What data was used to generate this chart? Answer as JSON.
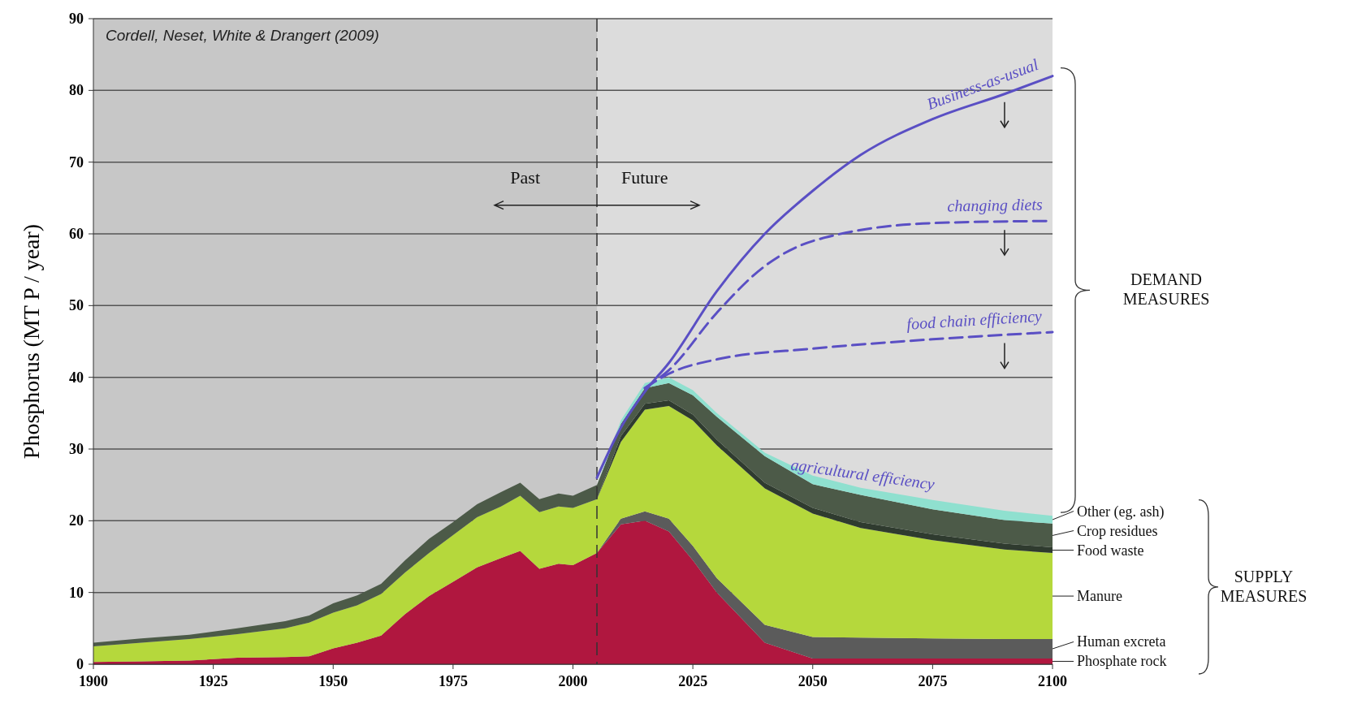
{
  "chart_data": {
    "type": "area",
    "stacked": true,
    "ylabel": "Phosphorus (MT P / year)",
    "x": [
      1900,
      1910,
      1920,
      1930,
      1940,
      1945,
      1950,
      1955,
      1960,
      1965,
      1970,
      1975,
      1980,
      1985,
      1989,
      1993,
      1997,
      2000,
      2005,
      2010,
      2015,
      2020,
      2025,
      2030,
      2040,
      2050,
      2060,
      2075,
      2090,
      2100
    ],
    "xlim": [
      1900,
      2100
    ],
    "xticks": [
      1900,
      1925,
      1950,
      1975,
      2000,
      2025,
      2050,
      2075,
      2100
    ],
    "ylim": [
      0,
      90
    ],
    "yticks": [
      0,
      10,
      20,
      30,
      40,
      50,
      60,
      70,
      80,
      90
    ],
    "grid": "y",
    "series": [
      {
        "name": "Phosphate rock",
        "color": "#b0173f",
        "values": [
          0.3,
          0.4,
          0.5,
          0.9,
          1.0,
          1.1,
          2.2,
          3.0,
          4.0,
          7.0,
          9.5,
          11.5,
          13.5,
          14.8,
          15.8,
          13.3,
          14.0,
          13.8,
          15.5,
          19.5,
          20,
          18.5,
          14.5,
          10,
          3,
          0.8,
          0.8,
          0.8,
          0.8,
          0.8
        ]
      },
      {
        "name": "Human excreta",
        "color": "#5b5b5b",
        "values": [
          0,
          0,
          0,
          0,
          0,
          0,
          0,
          0,
          0,
          0,
          0,
          0,
          0,
          0,
          0,
          0,
          0,
          0,
          0,
          0.8,
          1.3,
          1.8,
          2.0,
          2.0,
          2.5,
          3.0,
          2.9,
          2.8,
          2.7,
          2.7
        ]
      },
      {
        "name": "Manure",
        "color": "#b5d83c",
        "values": [
          2.2,
          2.6,
          3.0,
          3.3,
          4.0,
          4.7,
          5.0,
          5.2,
          5.8,
          5.8,
          6.0,
          6.5,
          7.0,
          7.2,
          7.7,
          7.9,
          8.0,
          8.0,
          7.5,
          10.7,
          14.2,
          15.7,
          17.5,
          18.5,
          19.0,
          17.2,
          15.3,
          13.7,
          12.5,
          12.0
        ]
      },
      {
        "name": "Food waste",
        "color": "#2f3b2f",
        "values": [
          0,
          0,
          0,
          0,
          0,
          0,
          0,
          0,
          0,
          0,
          0,
          0,
          0,
          0,
          0,
          0,
          0,
          0,
          0,
          0.8,
          0.8,
          0.8,
          0.8,
          0.8,
          0.8,
          0.8,
          0.8,
          0.8,
          0.8,
          0.8
        ]
      },
      {
        "name": "Crop residues",
        "color": "#4c5a48",
        "values": [
          0.5,
          0.6,
          0.6,
          0.8,
          1.0,
          1.0,
          1.3,
          1.4,
          1.4,
          1.7,
          2.0,
          1.8,
          1.8,
          2.0,
          1.8,
          1.8,
          1.8,
          1.7,
          2.0,
          1.7,
          2.2,
          2.4,
          2.7,
          3.2,
          3.7,
          3.3,
          3.8,
          3.5,
          3.3,
          3.3
        ]
      },
      {
        "name": "Other (eg. ash)",
        "color": "#8fe0cf",
        "values": [
          0,
          0,
          0,
          0,
          0,
          0,
          0,
          0,
          0,
          0,
          0,
          0,
          0,
          0,
          0,
          0,
          0,
          0,
          0,
          0.5,
          0.7,
          0.8,
          0.7,
          0.5,
          0.5,
          1.2,
          1.0,
          1.3,
          1.3,
          1.1
        ]
      },
      {
        "name": "Business-as-usual",
        "type": "line",
        "line_style": "solid",
        "color": "#5a4fc4",
        "x": [
          2005,
          2010,
          2015,
          2020,
          2030,
          2040,
          2050,
          2060,
          2075,
          2090,
          2100
        ],
        "values": [
          26,
          33,
          38,
          42,
          52,
          60,
          66,
          71,
          76,
          79.5,
          82
        ]
      },
      {
        "name": "changing diets",
        "type": "line",
        "line_style": "dashed",
        "color": "#5a4fc4",
        "x": [
          2015,
          2020,
          2030,
          2040,
          2050,
          2075,
          2100
        ],
        "values": [
          38.5,
          41,
          49,
          55.5,
          59,
          61.5,
          61.8
        ]
      },
      {
        "name": "food chain efficiency",
        "type": "line",
        "line_style": "dashed",
        "color": "#5a4fc4",
        "x": [
          2015,
          2020,
          2030,
          2050,
          2075,
          2100
        ],
        "values": [
          38.5,
          40.5,
          42.5,
          44,
          45.3,
          46.3
        ]
      }
    ],
    "bands": [
      {
        "axis": "x",
        "from": 1900,
        "to": 2005,
        "color": "#b9b9b9"
      }
    ],
    "ref_lines": [
      {
        "axis": "x",
        "value": 2005,
        "line_style": "dashed",
        "color": "#333333"
      }
    ],
    "annotations": [
      "Cordell, Neset, White & Drangert (2009)",
      "Past",
      "Future",
      "DEMAND MEASURES",
      "SUPPLY MEASURES",
      "agricultural efficiency"
    ]
  }
}
